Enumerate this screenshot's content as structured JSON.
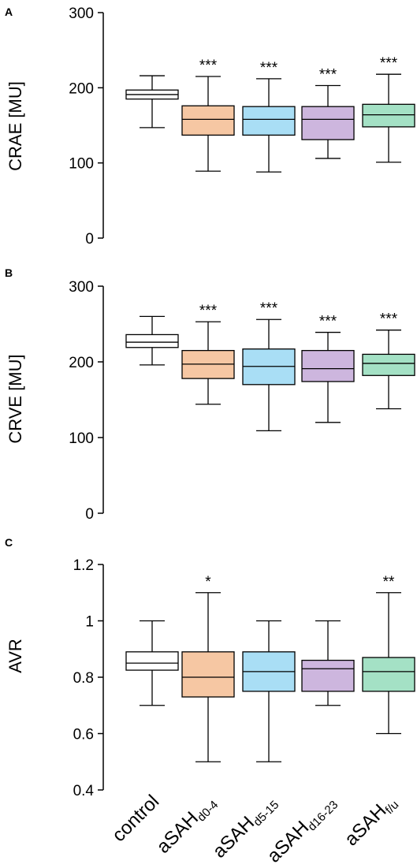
{
  "colors": {
    "control": "#ffffff",
    "aSAH_d0_4": "#f6c7a3",
    "aSAH_d5_15": "#a9def5",
    "aSAH_d16_23": "#cdb6de",
    "aSAH_fu": "#a4e1c5",
    "line": "#000000"
  },
  "x_labels": [
    {
      "main": "control",
      "sub": ""
    },
    {
      "main": "aSAH",
      "sub": "d0-4"
    },
    {
      "main": "aSAH",
      "sub": "d5-15"
    },
    {
      "main": "aSAH",
      "sub": "d16-23"
    },
    {
      "main": "aSAH",
      "sub": "f/u"
    }
  ],
  "chart_data": [
    {
      "type": "box",
      "panel": "A",
      "ylabel": "CRAE [MU]",
      "ylim": [
        0,
        300
      ],
      "yticks": [
        "0",
        "100",
        "200",
        "300"
      ],
      "ytick_values": [
        0,
        100,
        200,
        300
      ],
      "categories": [
        "control",
        "aSAHd0-4",
        "aSAHd5-15",
        "aSAHd16-23",
        "aSAHf/u"
      ],
      "boxes": [
        {
          "min": 147,
          "q1": 185,
          "median": 191,
          "q3": 197,
          "max": 216,
          "sig": ""
        },
        {
          "min": 89,
          "q1": 137,
          "median": 158,
          "q3": 176,
          "max": 215,
          "sig": "***"
        },
        {
          "min": 88,
          "q1": 137,
          "median": 158,
          "q3": 175,
          "max": 212,
          "sig": "***"
        },
        {
          "min": 106,
          "q1": 131,
          "median": 158,
          "q3": 175,
          "max": 203,
          "sig": "***"
        },
        {
          "min": 101,
          "q1": 148,
          "median": 164,
          "q3": 178,
          "max": 218,
          "sig": "***"
        }
      ]
    },
    {
      "type": "box",
      "panel": "B",
      "ylabel": "CRVE [MU]",
      "ylim": [
        0,
        300
      ],
      "yticks": [
        "0",
        "100",
        "200",
        "300"
      ],
      "ytick_values": [
        0,
        100,
        200,
        300
      ],
      "categories": [
        "control",
        "aSAHd0-4",
        "aSAHd5-15",
        "aSAHd16-23",
        "aSAHf/u"
      ],
      "boxes": [
        {
          "min": 196,
          "q1": 219,
          "median": 226,
          "q3": 236,
          "max": 260,
          "sig": ""
        },
        {
          "min": 144,
          "q1": 178,
          "median": 197,
          "q3": 215,
          "max": 253,
          "sig": "***"
        },
        {
          "min": 109,
          "q1": 170,
          "median": 194,
          "q3": 217,
          "max": 256,
          "sig": "***"
        },
        {
          "min": 120,
          "q1": 174,
          "median": 191,
          "q3": 215,
          "max": 239,
          "sig": "***"
        },
        {
          "min": 138,
          "q1": 182,
          "median": 198,
          "q3": 210,
          "max": 242,
          "sig": "***"
        }
      ]
    },
    {
      "type": "box",
      "panel": "C",
      "ylabel": "AVR",
      "ylim": [
        0.4,
        1.2
      ],
      "yticks": [
        "0.4",
        "0.6",
        "0.8",
        "1",
        "1.2"
      ],
      "ytick_values": [
        0.4,
        0.6,
        0.8,
        1.0,
        1.2
      ],
      "categories": [
        "control",
        "aSAHd0-4",
        "aSAHd5-15",
        "aSAHd16-23",
        "aSAHf/u"
      ],
      "boxes": [
        {
          "min": 0.7,
          "q1": 0.825,
          "median": 0.85,
          "q3": 0.89,
          "max": 1.0,
          "sig": ""
        },
        {
          "min": 0.5,
          "q1": 0.73,
          "median": 0.8,
          "q3": 0.89,
          "max": 1.1,
          "sig": "*"
        },
        {
          "min": 0.5,
          "q1": 0.75,
          "median": 0.82,
          "q3": 0.89,
          "max": 1.0,
          "sig": ""
        },
        {
          "min": 0.7,
          "q1": 0.75,
          "median": 0.83,
          "q3": 0.86,
          "max": 1.0,
          "sig": ""
        },
        {
          "min": 0.6,
          "q1": 0.75,
          "median": 0.82,
          "q3": 0.87,
          "max": 1.1,
          "sig": "**"
        }
      ]
    }
  ]
}
